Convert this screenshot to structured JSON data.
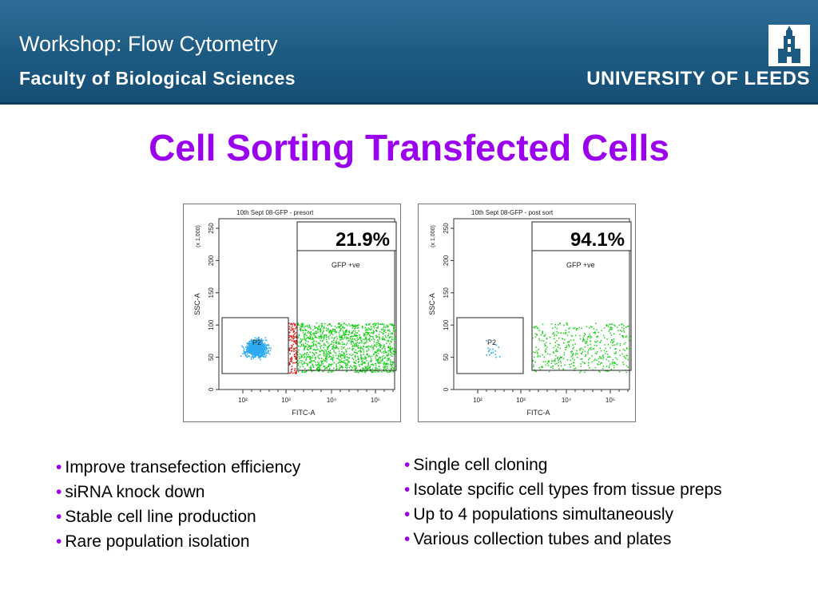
{
  "banner": {
    "workshop": "Workshop: Flow Cytometry",
    "faculty": "Faculty of Biological Sciences",
    "university": "UNIVERSITY OF LEEDS",
    "logo_icon": "leeds-tower-icon"
  },
  "title": "Cell Sorting Transfected Cells",
  "colors": {
    "title": "#9b00ee",
    "banner": "#1d5a82",
    "p2_events": "#2eaaf0",
    "gfp_events": "#18d018",
    "boundary_events": "#e02020"
  },
  "plots": [
    {
      "header": "10th Sept 08-GFP - presort",
      "percent": "21.9%",
      "gate_label": "GFP +ve",
      "p2_label": "P2",
      "ylabel": "SSC-A",
      "yscale": "(x 1,000)",
      "xlabel": "FITC-A",
      "yticks": [
        "250",
        "200",
        "150",
        "100",
        "50",
        "0"
      ],
      "xticks": [
        "10²",
        "10³",
        "10⁴",
        "10⁵"
      ],
      "density": {
        "p2": 1.0,
        "gfp": 1.0
      }
    },
    {
      "header": "10th Sept 08-GFP - post sort",
      "percent": "94.1%",
      "gate_label": "GFP +ve",
      "p2_label": "P2",
      "ylabel": "SSC-A",
      "yscale": "(x 1,000)",
      "xlabel": "FITC-A",
      "yticks": [
        "250",
        "200",
        "150",
        "100",
        "50",
        "0"
      ],
      "xticks": [
        "10²",
        "10³",
        "10⁴",
        "10⁵"
      ],
      "density": {
        "p2": 0.02,
        "gfp": 0.35
      }
    }
  ],
  "bullets_left": [
    "Improve transefection efficiency",
    "siRNA knock down",
    "Stable cell line production",
    "Rare population isolation"
  ],
  "bullets_right": [
    "Single cell cloning",
    "Isolate spcific cell types from tissue preps",
    "Up to 4 populations simultaneously",
    "Various collection tubes and plates"
  ],
  "bullet_marker": "•"
}
